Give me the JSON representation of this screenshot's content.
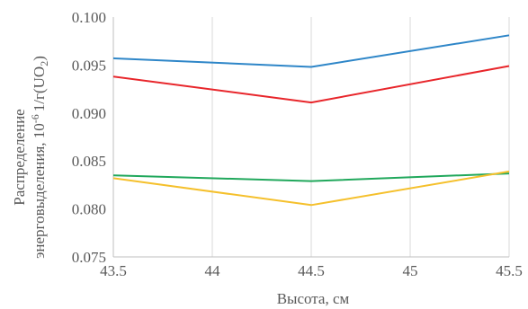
{
  "chart_data": {
    "type": "line",
    "xlabel": "Высота, см",
    "ylabel_line1": "Распределение",
    "ylabel_line2": "энерговыделения, 10",
    "ylabel_sup": "-6",
    "ylabel_unit": "1/г(UO",
    "ylabel_sub": "2",
    "ylabel_close": ")",
    "xlim": [
      43.5,
      45.5
    ],
    "ylim": [
      0.075,
      0.1
    ],
    "x_ticks": [
      43.5,
      44,
      44.5,
      45,
      45.5
    ],
    "x_tick_labels": [
      "43.5",
      "44",
      "44.5",
      "45",
      "45.5"
    ],
    "y_ticks": [
      0.075,
      0.08,
      0.085,
      0.09,
      0.095,
      0.1
    ],
    "y_tick_labels": [
      "0.075",
      "0.080",
      "0.085",
      "0.090",
      "0.095",
      "0.100"
    ],
    "grid": "vertical",
    "series": [
      {
        "color": "#2e86c8",
        "x": [
          43.5,
          44.5,
          45.5
        ],
        "y": [
          0.0957,
          0.0948,
          0.0981
        ]
      },
      {
        "color": "#e8262b",
        "x": [
          43.5,
          44.5,
          45.5
        ],
        "y": [
          0.0938,
          0.0911,
          0.0949
        ]
      },
      {
        "color": "#21a85c",
        "x": [
          43.5,
          44.5,
          45.5
        ],
        "y": [
          0.0835,
          0.0829,
          0.0837
        ]
      },
      {
        "color": "#f5c02c",
        "x": [
          43.5,
          44.5,
          45.5
        ],
        "y": [
          0.0832,
          0.0804,
          0.0839
        ]
      }
    ]
  }
}
